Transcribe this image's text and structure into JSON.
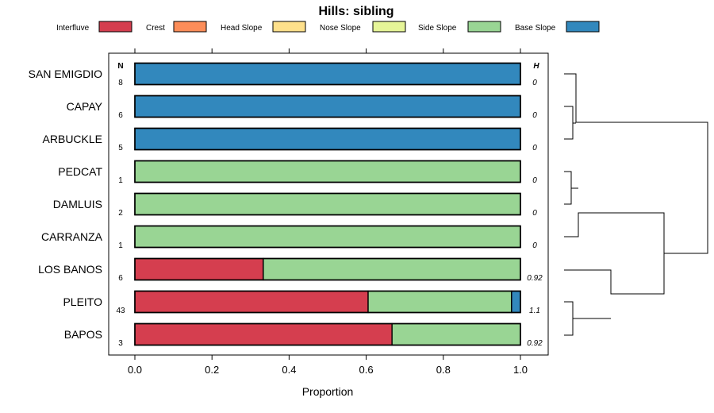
{
  "chart_data": {
    "type": "bar",
    "orientation": "horizontal",
    "stacked": true,
    "title": "Hills: sibling",
    "xlabel": "Proportion",
    "xlim": [
      0,
      1
    ],
    "xticks": [
      "0.0",
      "0.2",
      "0.4",
      "0.6",
      "0.8",
      "1.0"
    ],
    "legend_position": "top",
    "column_headers": {
      "n": "N",
      "h": "H"
    },
    "categories": [
      "SAN EMIGDIO",
      "CAPAY",
      "ARBUCKLE",
      "PEDCAT",
      "DAMLUIS",
      "CARRANZA",
      "LOS BANOS",
      "PLEITO",
      "BAPOS"
    ],
    "n": [
      "8",
      "6",
      "5",
      "1",
      "2",
      "1",
      "6",
      "43",
      "3"
    ],
    "h": [
      "0",
      "0",
      "0",
      "0",
      "0",
      "0",
      "0.92",
      "1.1",
      "0.92"
    ],
    "series": [
      {
        "name": "Interfluve",
        "color": "#d53e4f",
        "values": [
          0,
          0,
          0,
          0,
          0,
          0,
          0.333,
          0.605,
          0.667
        ]
      },
      {
        "name": "Crest",
        "color": "#fc8d59",
        "values": [
          0,
          0,
          0,
          0,
          0,
          0,
          0,
          0,
          0
        ]
      },
      {
        "name": "Head Slope",
        "color": "#fee08b",
        "values": [
          0,
          0,
          0,
          0,
          0,
          0,
          0,
          0,
          0
        ]
      },
      {
        "name": "Nose Slope",
        "color": "#e6f598",
        "values": [
          0,
          0,
          0,
          0,
          0,
          0,
          0,
          0,
          0
        ]
      },
      {
        "name": "Side Slope",
        "color": "#99d594",
        "values": [
          0,
          0,
          0,
          1,
          1,
          1,
          0.667,
          0.372,
          0.333
        ]
      },
      {
        "name": "Base Slope",
        "color": "#3288bd",
        "values": [
          1,
          1,
          1,
          0,
          0,
          0,
          0,
          0.023,
          0
        ]
      }
    ],
    "dendrogram": true
  }
}
